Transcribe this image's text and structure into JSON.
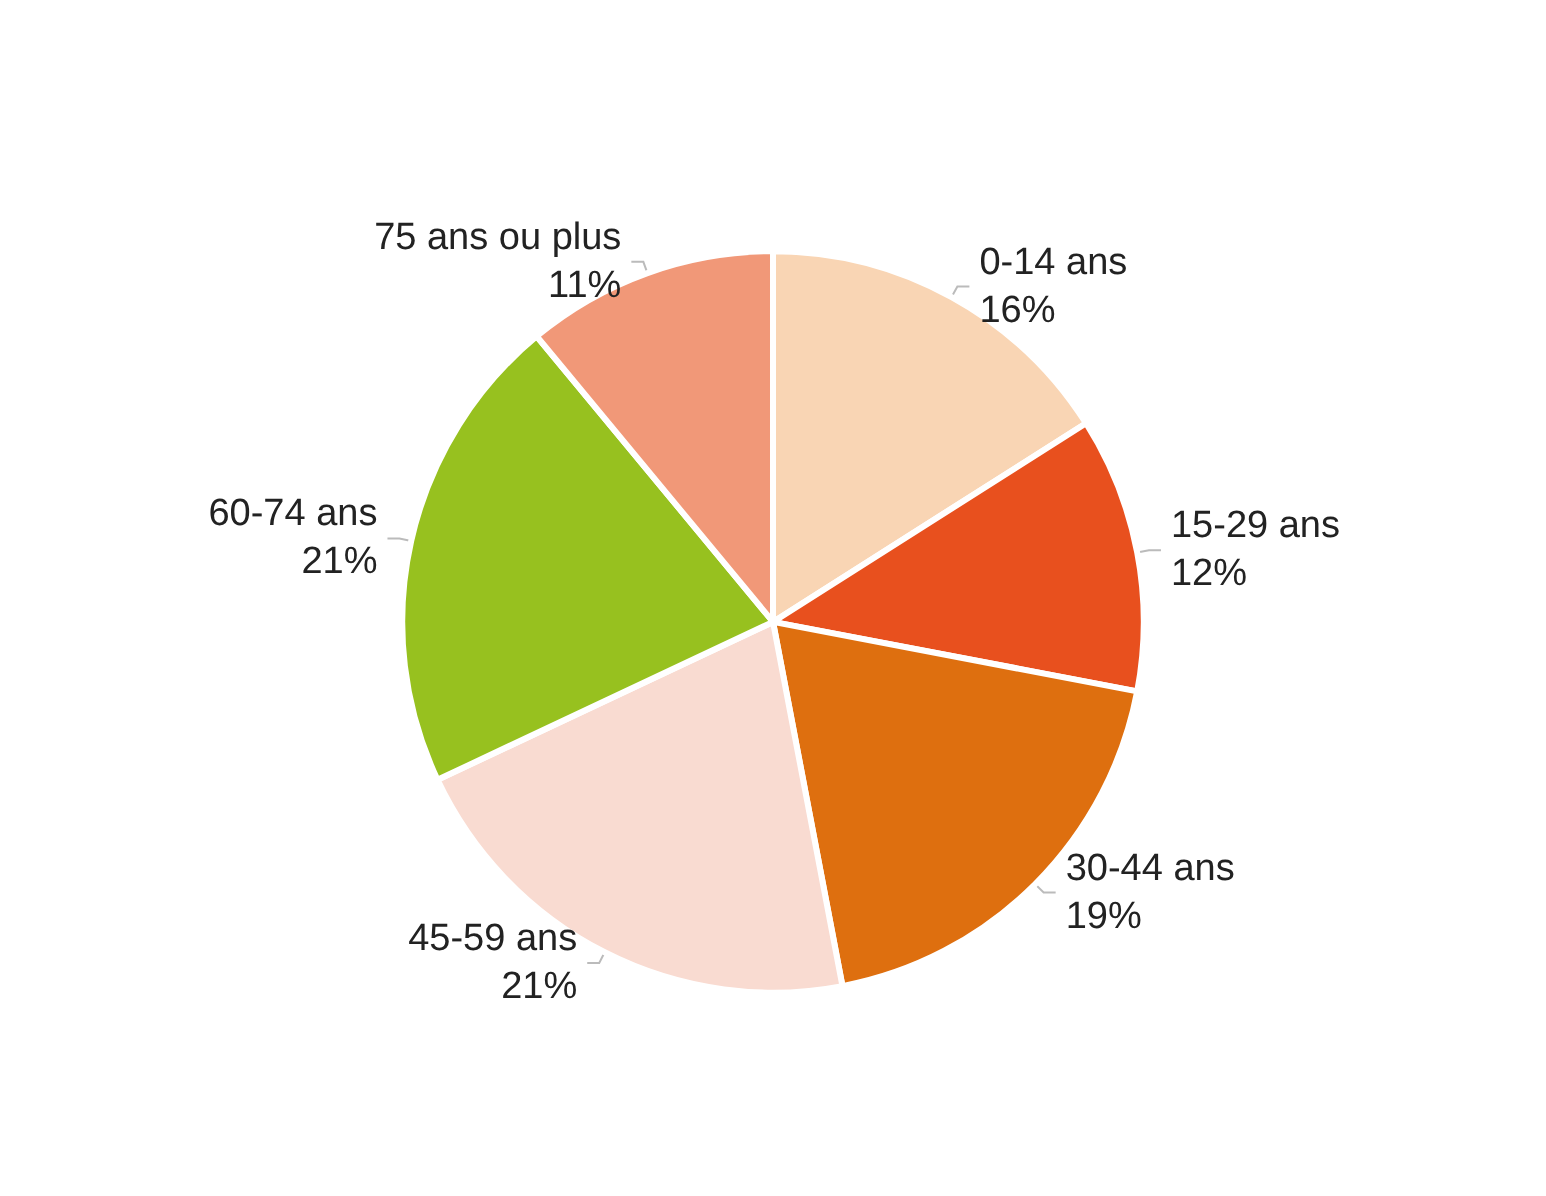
{
  "chart_data": {
    "type": "pie",
    "categories": [
      "0-14 ans",
      "15-29 ans",
      "30-44 ans",
      "45-59 ans",
      "60-74 ans",
      "75 ans ou plus"
    ],
    "values": [
      16,
      12,
      19,
      21,
      21,
      11
    ],
    "value_labels": [
      "16%",
      "12%",
      "19%",
      "21%",
      "21%",
      "11%"
    ],
    "colors": [
      "#f9d5b4",
      "#e8501e",
      "#de6f0f",
      "#f9dbd1",
      "#97c11f",
      "#f19878"
    ],
    "legend": false
  }
}
